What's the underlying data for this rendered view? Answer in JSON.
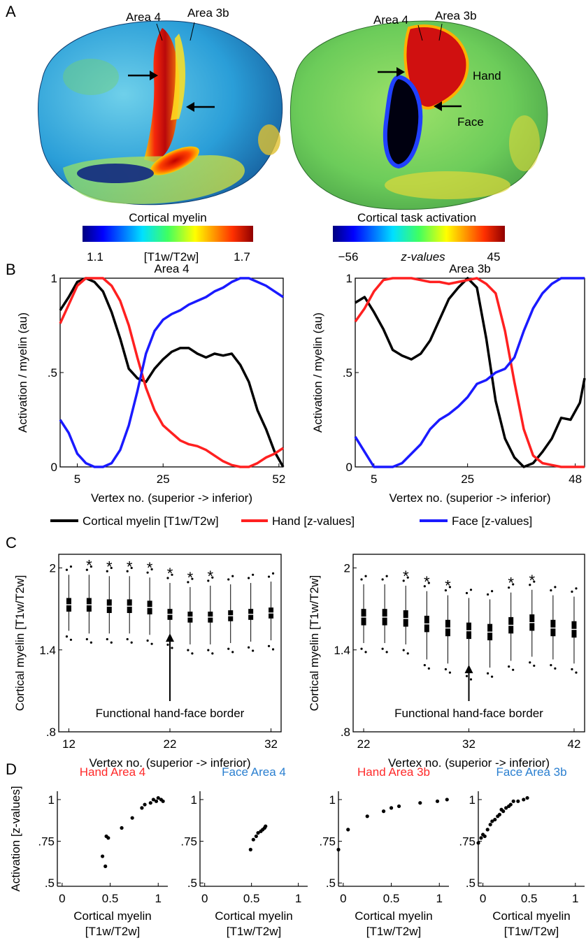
{
  "panels": {
    "a": {
      "letter": "A",
      "left": {
        "labels": {
          "area4": "Area 4",
          "area3b": "Area 3b"
        },
        "colorbar": {
          "title": "Cortical myelin",
          "min": "1.1",
          "unit": "[T1w/T2w]",
          "max": "1.7"
        }
      },
      "right": {
        "labels": {
          "area4": "Area 4",
          "area3b": "Area 3b",
          "hand": "Hand",
          "face": "Face"
        },
        "colorbar": {
          "title": "Cortical task activation",
          "min": "−56",
          "unit": "z-values",
          "max": "45"
        }
      }
    },
    "b": {
      "letter": "B"
    },
    "c": {
      "letter": "C",
      "border_label": "Functional hand-face border"
    },
    "d": {
      "letter": "D"
    }
  },
  "legend": [
    {
      "label": "Cortical myelin [T1w/T2w]",
      "color": "#000000"
    },
    {
      "label": "Hand [z-values]",
      "color": "#ff2020"
    },
    {
      "label": "Face [z-values]",
      "color": "#1a1aff"
    }
  ],
  "colors": {
    "myelin": "#000000",
    "hand": "#ff2020",
    "face": "#1a1aff",
    "title_hand": "#ff2a2a",
    "title_face": "#2a7fd0"
  },
  "chart_data": [
    {
      "type": "line",
      "title": "Area 4",
      "xlabel": "Vertex no. (superior -> inferior)",
      "ylabel": "Activation / myelin (au)",
      "xlim": [
        1,
        53
      ],
      "ylim": [
        0,
        1
      ],
      "xticks": [
        "5",
        "25",
        "52"
      ],
      "xtick_values": [
        5,
        25,
        52
      ],
      "yticks": [
        "0",
        ".5",
        "1"
      ],
      "ytick_values": [
        0,
        0.5,
        1
      ],
      "x": [
        1,
        3,
        5,
        7,
        9,
        11,
        13,
        15,
        17,
        19,
        21,
        23,
        25,
        27,
        29,
        31,
        33,
        35,
        37,
        39,
        41,
        43,
        45,
        47,
        49,
        51,
        53
      ],
      "series": [
        {
          "name": "Cortical myelin [T1w/T2w]",
          "values": [
            0.83,
            0.9,
            0.98,
            1.0,
            0.98,
            0.93,
            0.82,
            0.68,
            0.52,
            0.47,
            0.45,
            0.52,
            0.57,
            0.61,
            0.63,
            0.63,
            0.6,
            0.58,
            0.6,
            0.59,
            0.6,
            0.54,
            0.45,
            0.3,
            0.2,
            0.08,
            0.0
          ]
        },
        {
          "name": "Hand [z-values]",
          "values": [
            0.76,
            0.86,
            0.96,
            1.0,
            1.0,
            1.0,
            0.96,
            0.88,
            0.75,
            0.58,
            0.42,
            0.3,
            0.22,
            0.18,
            0.14,
            0.12,
            0.11,
            0.09,
            0.06,
            0.03,
            0.01,
            0.0,
            0.0,
            0.02,
            0.05,
            0.07,
            0.1
          ]
        },
        {
          "name": "Face [z-values]",
          "values": [
            0.25,
            0.18,
            0.07,
            0.02,
            0.0,
            0.0,
            0.02,
            0.09,
            0.22,
            0.4,
            0.6,
            0.72,
            0.78,
            0.81,
            0.83,
            0.86,
            0.88,
            0.9,
            0.93,
            0.95,
            0.98,
            1.0,
            1.0,
            0.98,
            0.96,
            0.93,
            0.9
          ]
        }
      ]
    },
    {
      "type": "line",
      "title": "Area 3b",
      "xlabel": "Vertex no. (superior -> inferior)",
      "ylabel": "Activation / myelin (au)",
      "xlim": [
        1,
        50
      ],
      "ylim": [
        0,
        1
      ],
      "xticks": [
        "5",
        "25",
        "48"
      ],
      "xtick_values": [
        5,
        25,
        48
      ],
      "yticks": [
        "0",
        ".5",
        "1"
      ],
      "ytick_values": [
        0,
        0.5,
        1
      ],
      "x": [
        1,
        3,
        5,
        7,
        9,
        11,
        13,
        15,
        17,
        19,
        21,
        23,
        25,
        27,
        29,
        31,
        33,
        35,
        37,
        39,
        41,
        43,
        45,
        47,
        49,
        50
      ],
      "series": [
        {
          "name": "Cortical myelin [T1w/T2w]",
          "values": [
            0.87,
            0.9,
            0.82,
            0.73,
            0.62,
            0.59,
            0.57,
            0.6,
            0.67,
            0.78,
            0.89,
            0.95,
            1.0,
            0.95,
            0.68,
            0.35,
            0.15,
            0.05,
            0.0,
            0.02,
            0.08,
            0.15,
            0.26,
            0.25,
            0.34,
            0.47
          ]
        },
        {
          "name": "Hand [z-values]",
          "values": [
            0.77,
            0.84,
            0.93,
            0.99,
            1.0,
            1.0,
            1.0,
            0.99,
            0.98,
            0.98,
            0.97,
            0.98,
            0.99,
            1.0,
            0.97,
            0.92,
            0.72,
            0.45,
            0.2,
            0.06,
            0.02,
            0.01,
            0.0,
            0.0,
            0.0,
            0.0
          ]
        },
        {
          "name": "Face [z-values]",
          "values": [
            0.16,
            0.08,
            0.0,
            0.0,
            0.0,
            0.02,
            0.07,
            0.12,
            0.2,
            0.25,
            0.28,
            0.32,
            0.37,
            0.44,
            0.46,
            0.5,
            0.52,
            0.58,
            0.72,
            0.84,
            0.92,
            0.97,
            1.0,
            1.0,
            1.0,
            1.0
          ]
        }
      ]
    },
    {
      "type": "box",
      "xlabel": "Vertex no. (superior -> inferior)",
      "ylabel": "Cortical myelin [T1w/T2w]",
      "xlim": [
        11,
        33
      ],
      "ylim": [
        0.8,
        2.1
      ],
      "xticks": [
        "12",
        "22",
        "32"
      ],
      "xtick_values": [
        12,
        22,
        32
      ],
      "yticks": [
        ".8",
        "1.4",
        "2"
      ],
      "ytick_values": [
        0.8,
        1.4,
        2.0
      ],
      "x": [
        12,
        14,
        16,
        18,
        20,
        22,
        24,
        26,
        28,
        30,
        32
      ],
      "median": [
        1.73,
        1.73,
        1.72,
        1.72,
        1.71,
        1.66,
        1.64,
        1.64,
        1.65,
        1.66,
        1.67
      ],
      "q1": [
        1.68,
        1.68,
        1.67,
        1.67,
        1.66,
        1.62,
        1.6,
        1.6,
        1.61,
        1.62,
        1.63
      ],
      "q3": [
        1.78,
        1.78,
        1.77,
        1.77,
        1.76,
        1.7,
        1.68,
        1.68,
        1.69,
        1.7,
        1.71
      ],
      "whisker_low": [
        1.54,
        1.52,
        1.52,
        1.52,
        1.51,
        1.48,
        1.44,
        1.44,
        1.45,
        1.46,
        1.47
      ],
      "whisker_high": [
        1.95,
        1.95,
        1.94,
        1.94,
        1.93,
        1.89,
        1.86,
        1.87,
        1.88,
        1.89,
        1.9
      ],
      "significant": [
        false,
        true,
        true,
        true,
        true,
        true,
        true,
        true,
        false,
        false,
        false
      ],
      "annotation": "Functional hand-face border",
      "border_x": 22
    },
    {
      "type": "box",
      "xlabel": "Vertex no. (superior -> inferior)",
      "ylabel": "Cortical myelin [T1w/T2w]",
      "xlim": [
        21,
        43
      ],
      "ylim": [
        0.8,
        2.1
      ],
      "xticks": [
        "22",
        "32",
        "42"
      ],
      "xtick_values": [
        22,
        32,
        42
      ],
      "yticks": [
        ".8",
        "1.4",
        "2"
      ],
      "ytick_values": [
        0.8,
        1.4,
        2.0
      ],
      "x": [
        22,
        24,
        26,
        28,
        30,
        32,
        34,
        36,
        38,
        40,
        42
      ],
      "median": [
        1.64,
        1.64,
        1.63,
        1.59,
        1.56,
        1.54,
        1.53,
        1.58,
        1.6,
        1.56,
        1.55
      ],
      "q1": [
        1.58,
        1.58,
        1.57,
        1.53,
        1.5,
        1.48,
        1.47,
        1.52,
        1.54,
        1.5,
        1.49
      ],
      "q3": [
        1.7,
        1.7,
        1.69,
        1.65,
        1.62,
        1.6,
        1.59,
        1.64,
        1.66,
        1.62,
        1.61
      ],
      "whisker_low": [
        1.45,
        1.45,
        1.44,
        1.33,
        1.3,
        1.25,
        1.27,
        1.32,
        1.35,
        1.33,
        1.3
      ],
      "whisker_high": [
        1.88,
        1.88,
        1.87,
        1.83,
        1.8,
        1.78,
        1.77,
        1.82,
        1.84,
        1.8,
        1.79
      ],
      "significant": [
        false,
        false,
        true,
        true,
        true,
        false,
        false,
        true,
        true,
        false,
        false
      ],
      "annotation": "Functional hand-face border",
      "border_x": 32
    },
    {
      "type": "scatter",
      "title": "Hand Area 4",
      "title_parts": [
        {
          "text": "Hand",
          "role": "hand"
        },
        {
          "text": "Area 4",
          "role": "hand"
        }
      ],
      "xlabel": "Cortical myelin\n[T1w/T2w]",
      "ylabel": "Activation [z-values]",
      "xlim": [
        -0.05,
        1.1
      ],
      "ylim": [
        0.48,
        1.05
      ],
      "xticks": [
        "0",
        "0.5",
        "1"
      ],
      "xtick_values": [
        0,
        0.5,
        1
      ],
      "yticks": [
        ".5",
        ".75",
        "1"
      ],
      "ytick_values": [
        0.5,
        0.75,
        1
      ],
      "x": [
        0.42,
        0.45,
        0.48,
        0.46,
        0.62,
        0.73,
        0.83,
        0.86,
        0.92,
        0.95,
        0.98,
        1.0,
        1.03,
        1.05
      ],
      "y": [
        0.66,
        0.6,
        0.77,
        0.78,
        0.83,
        0.89,
        0.95,
        0.97,
        0.98,
        1.0,
        0.99,
        1.01,
        1.0,
        0.99
      ]
    },
    {
      "type": "scatter",
      "title": "Face  Area 4",
      "title_parts": [
        {
          "text": "Face",
          "role": "face"
        },
        {
          "text": "Area 4",
          "role": "face"
        }
      ],
      "xlabel": "Cortical myelin\n[T1w/T2w]",
      "xlim": [
        -0.05,
        1.1
      ],
      "ylim": [
        0.48,
        1.05
      ],
      "xticks": [
        "0",
        "0.5",
        "1"
      ],
      "xtick_values": [
        0,
        0.5,
        1
      ],
      "yticks": [
        ".5",
        ".75",
        "1"
      ],
      "ytick_values": [
        0.5,
        0.75,
        1
      ],
      "x": [
        0.49,
        0.52,
        0.55,
        0.57,
        0.6,
        0.62,
        0.64,
        0.65
      ],
      "y": [
        0.7,
        0.76,
        0.78,
        0.8,
        0.81,
        0.82,
        0.83,
        0.84
      ]
    },
    {
      "type": "scatter",
      "title": "Hand Area 3b",
      "title_parts": [
        {
          "text": "Hand",
          "role": "hand"
        },
        {
          "text": "Area 3b",
          "role": "hand"
        }
      ],
      "xlabel": "Cortical myelin\n[T1w/T2w]",
      "xlim": [
        -0.05,
        1.1
      ],
      "ylim": [
        0.48,
        1.05
      ],
      "xticks": [
        "0",
        "0.5",
        "1"
      ],
      "xtick_values": [
        0,
        0.5,
        1
      ],
      "yticks": [
        ".5",
        ".75",
        "1"
      ],
      "ytick_values": [
        0.5,
        0.75,
        1
      ],
      "x": [
        -0.05,
        0.05,
        0.25,
        0.42,
        0.5,
        0.58,
        0.8,
        0.98,
        1.08
      ],
      "y": [
        0.7,
        0.82,
        0.9,
        0.93,
        0.95,
        0.96,
        0.98,
        0.99,
        1.0
      ]
    },
    {
      "type": "scatter",
      "title": "Face Area 3b",
      "title_parts": [
        {
          "text": "Face",
          "role": "face"
        },
        {
          "text": "Area 3b",
          "role": "face"
        }
      ],
      "xlabel": "Cortical myelin\n[T1w/T2w]",
      "xlim": [
        -0.05,
        1.1
      ],
      "ylim": [
        0.48,
        1.05
      ],
      "xticks": [
        "0",
        "0.5",
        "1"
      ],
      "xtick_values": [
        0,
        0.5,
        1
      ],
      "yticks": [
        ".5",
        ".75",
        "1"
      ],
      "ytick_values": [
        0.5,
        0.75,
        1
      ],
      "x": [
        -0.05,
        -0.02,
        0.0,
        0.02,
        0.05,
        0.08,
        0.1,
        0.13,
        0.16,
        0.18,
        0.2,
        0.22,
        0.25,
        0.28,
        0.3,
        0.33,
        0.38,
        0.44,
        0.48
      ],
      "y": [
        0.74,
        0.77,
        0.79,
        0.78,
        0.82,
        0.85,
        0.87,
        0.88,
        0.9,
        0.91,
        0.94,
        0.93,
        0.95,
        0.96,
        0.97,
        0.99,
        0.99,
        1.0,
        1.01
      ]
    }
  ]
}
